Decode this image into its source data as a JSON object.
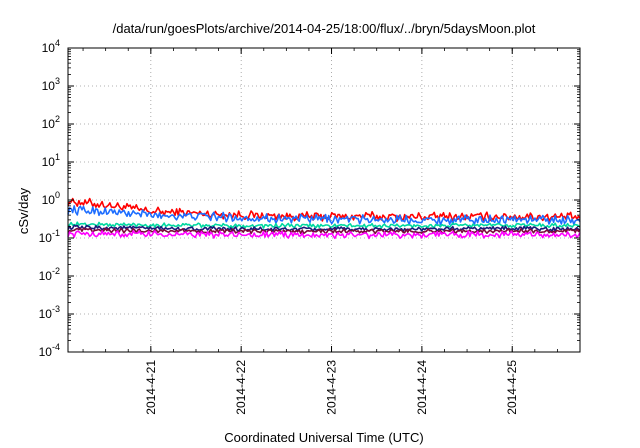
{
  "chart_data": {
    "type": "line",
    "title": "/data/run/goesPlots/archive/2014-04-25/18:00/flux/../bryn/5daysMoon.plot",
    "xlabel": "Coordinated Universal Time (UTC)",
    "ylabel": "cSv/day",
    "yscale": "log",
    "ylim": [
      0.0001,
      10000
    ],
    "xlim": [
      "2014-04-20T02:00",
      "2014-04-25T18:00"
    ],
    "y_ticks": [
      {
        "value": 0.0001,
        "base": "10",
        "exp": "-4"
      },
      {
        "value": 0.001,
        "base": "10",
        "exp": "-3"
      },
      {
        "value": 0.01,
        "base": "10",
        "exp": "-2"
      },
      {
        "value": 0.1,
        "base": "10",
        "exp": "-1"
      },
      {
        "value": 1,
        "base": "10",
        "exp": "0"
      },
      {
        "value": 10,
        "base": "10",
        "exp": "1"
      },
      {
        "value": 100,
        "base": "10",
        "exp": "2"
      },
      {
        "value": 1000,
        "base": "10",
        "exp": "3"
      },
      {
        "value": 10000,
        "base": "10",
        "exp": "4"
      }
    ],
    "x_ticks": [
      {
        "value": "2014-04-21T00:00",
        "label": "2014-4-21"
      },
      {
        "value": "2014-04-22T00:00",
        "label": "2014-4-22"
      },
      {
        "value": "2014-04-23T00:00",
        "label": "2014-4-23"
      },
      {
        "value": "2014-04-24T00:00",
        "label": "2014-4-24"
      },
      {
        "value": "2014-04-25T00:00",
        "label": "2014-4-25"
      }
    ],
    "grid": true,
    "series": [
      {
        "color": "#ff0000",
        "x": [
          "2014-04-20T02:00",
          "2014-04-20T12:00",
          "2014-04-21T00:00",
          "2014-04-21T12:00",
          "2014-04-22T00:00",
          "2014-04-22T12:00",
          "2014-04-23T00:00",
          "2014-04-23T12:00",
          "2014-04-24T00:00",
          "2014-04-24T12:00",
          "2014-04-25T00:00",
          "2014-04-25T18:00"
        ],
        "y": [
          0.95,
          0.75,
          0.5,
          0.45,
          0.4,
          0.38,
          0.37,
          0.37,
          0.36,
          0.36,
          0.37,
          0.35
        ],
        "noise": 0.25
      },
      {
        "color": "#1e6eff",
        "x": [
          "2014-04-20T02:00",
          "2014-04-20T12:00",
          "2014-04-21T00:00",
          "2014-04-21T12:00",
          "2014-04-22T00:00",
          "2014-04-22T12:00",
          "2014-04-23T00:00",
          "2014-04-23T12:00",
          "2014-04-24T00:00",
          "2014-04-24T12:00",
          "2014-04-25T00:00",
          "2014-04-25T18:00"
        ],
        "y": [
          0.55,
          0.5,
          0.4,
          0.38,
          0.34,
          0.32,
          0.31,
          0.31,
          0.3,
          0.3,
          0.31,
          0.3
        ],
        "noise": 0.25
      },
      {
        "color": "#00d8a0",
        "x": [
          "2014-04-20T02:00",
          "2014-04-21T00:00",
          "2014-04-22T00:00",
          "2014-04-23T00:00",
          "2014-04-24T00:00",
          "2014-04-25T00:00",
          "2014-04-25T18:00"
        ],
        "y": [
          0.23,
          0.22,
          0.21,
          0.21,
          0.21,
          0.22,
          0.21
        ],
        "noise": 0.12
      },
      {
        "color": "#1a1a7a",
        "x": [
          "2014-04-20T02:00",
          "2014-04-21T00:00",
          "2014-04-22T00:00",
          "2014-04-23T00:00",
          "2014-04-24T00:00",
          "2014-04-25T00:00",
          "2014-04-25T18:00"
        ],
        "y": [
          0.19,
          0.18,
          0.17,
          0.17,
          0.17,
          0.18,
          0.17
        ],
        "noise": 0.12
      },
      {
        "color": "#7a0a3a",
        "x": [
          "2014-04-20T02:00",
          "2014-04-21T00:00",
          "2014-04-22T00:00",
          "2014-04-23T00:00",
          "2014-04-24T00:00",
          "2014-04-25T00:00",
          "2014-04-25T18:00"
        ],
        "y": [
          0.16,
          0.155,
          0.15,
          0.15,
          0.15,
          0.155,
          0.15
        ],
        "noise": 0.12
      },
      {
        "color": "#ff00ff",
        "x": [
          "2014-04-20T02:00",
          "2014-04-21T00:00",
          "2014-04-22T00:00",
          "2014-04-23T00:00",
          "2014-04-24T00:00",
          "2014-04-25T00:00",
          "2014-04-25T18:00"
        ],
        "y": [
          0.13,
          0.125,
          0.12,
          0.12,
          0.12,
          0.125,
          0.12
        ],
        "noise": 0.18
      }
    ]
  }
}
